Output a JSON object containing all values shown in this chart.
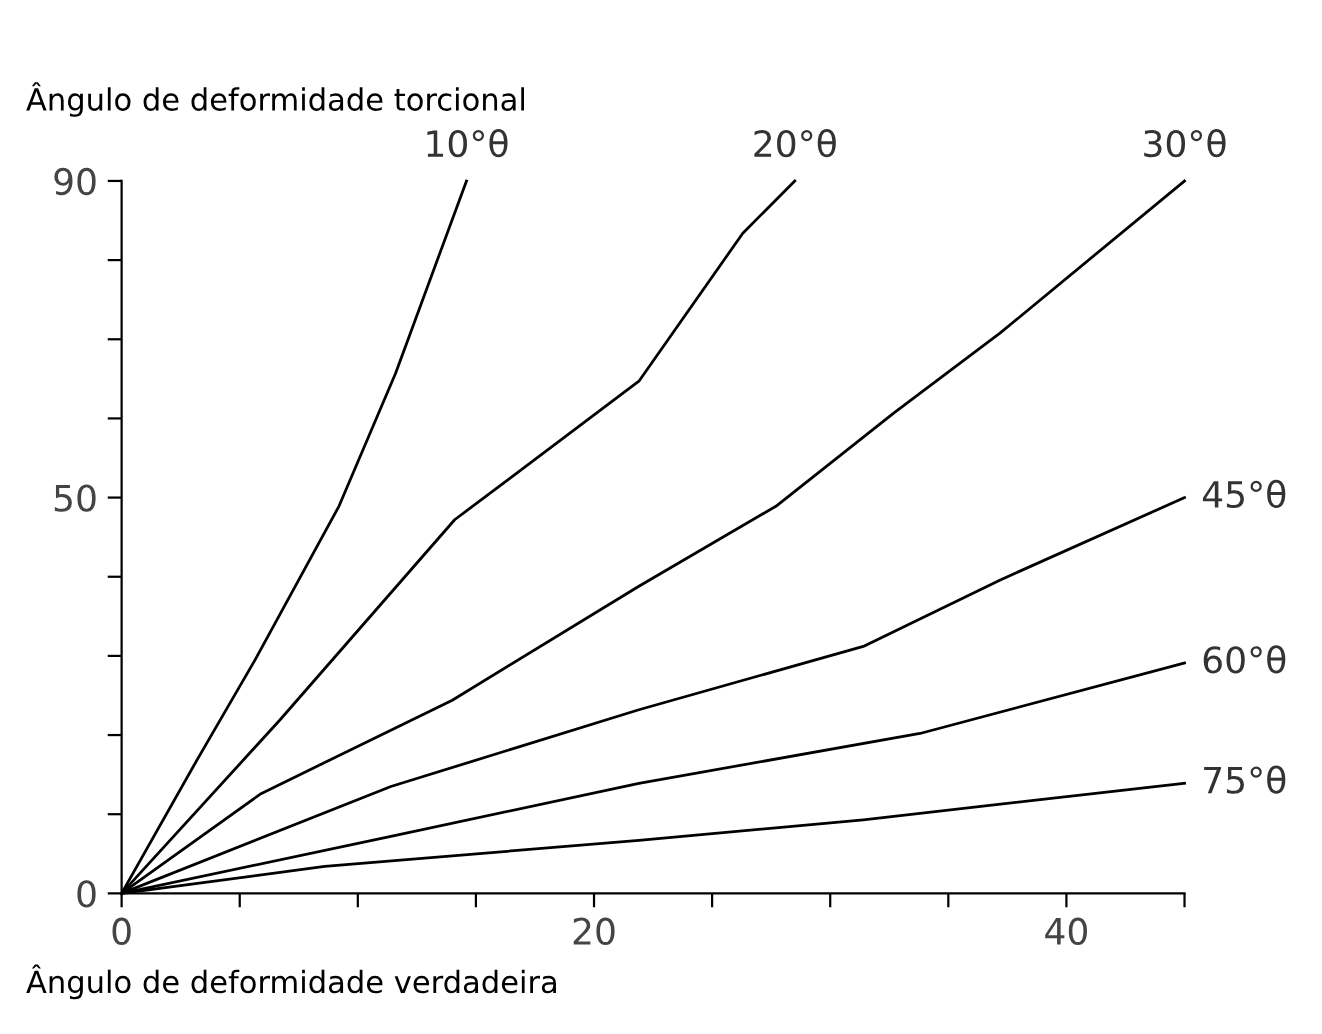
{
  "chart_data": {
    "type": "line",
    "xlabel": "Ângulo de deformidade verdadeira",
    "ylabel": "Ângulo de deformidade torcional",
    "xlim": [
      0,
      45
    ],
    "xticks": [
      0,
      {
        "value": 5,
        "label": null
      },
      {
        "value": 10,
        "label": null
      },
      {
        "value": 15,
        "label": null
      },
      20,
      {
        "value": 25,
        "label": null
      },
      {
        "value": 30,
        "label": null
      },
      {
        "value": 35,
        "label": null
      },
      40,
      {
        "value": 45,
        "label": null
      }
    ],
    "ylim": [
      0,
      90
    ],
    "yticks": [
      0,
      {
        "value": 10,
        "label": null
      },
      {
        "value": 20,
        "label": null
      },
      {
        "value": 30,
        "label": null
      },
      {
        "value": 40,
        "label": null
      },
      50,
      {
        "value": 60,
        "label": null
      },
      {
        "value": 70,
        "label": null
      },
      {
        "value": 80,
        "label": null
      },
      90
    ],
    "grid": false,
    "legend": false,
    "marker": "none",
    "line_style": "solid",
    "series": [
      {
        "name": "10°θ",
        "color": "#000000",
        "x": [
          0,
          3.2,
          5.65,
          9.2,
          11.6,
          14.6
        ],
        "values": [
          0,
          16.9,
          29.5,
          48.9,
          65.7,
          90
        ]
      },
      {
        "name": "20°θ",
        "color": "#000000",
        "x": [
          0,
          6.7,
          14.1,
          21.9,
          26.3,
          28.5
        ],
        "values": [
          0,
          21.9,
          47.2,
          64.7,
          83.4,
          90
        ]
      },
      {
        "name": "30°θ",
        "color": "#000000",
        "x": [
          0,
          5.9,
          14.0,
          21.9,
          27.7,
          32.7,
          37.2,
          45
        ],
        "values": [
          0,
          12.6,
          24.4,
          38.8,
          48.9,
          60.7,
          70.8,
          90
        ]
      },
      {
        "name": "45°θ",
        "color": "#000000",
        "x": [
          0,
          11.4,
          21.9,
          31.4,
          37.2,
          45
        ],
        "values": [
          0,
          13.5,
          23.2,
          31.2,
          39.6,
          50
        ]
      },
      {
        "name": "60°θ",
        "color": "#000000",
        "x": [
          0,
          11.4,
          21.9,
          33.8,
          45
        ],
        "values": [
          0,
          7.2,
          13.9,
          20.2,
          29.1
        ]
      },
      {
        "name": "75°θ",
        "color": "#000000",
        "x": [
          0,
          8.6,
          21.9,
          31.4,
          45
        ],
        "values": [
          0,
          3.4,
          6.7,
          9.3,
          13.9
        ]
      }
    ]
  }
}
